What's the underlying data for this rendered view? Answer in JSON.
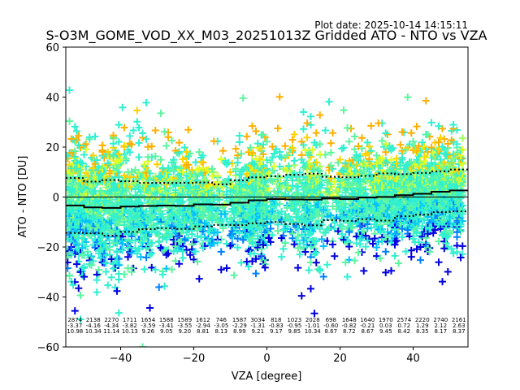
{
  "chart_data": {
    "type": "scatter",
    "title": "S-O3M_GOME_VOD_XX_M03_20251013Z Gridded ATO - NTO vs VZA",
    "plot_date_label": "Plot date: 2025-10-14 14:15:11",
    "xlabel": "VZA [degree]",
    "ylabel": "ATO - NTO [DU]",
    "xlim": [
      -55,
      55
    ],
    "ylim": [
      -60,
      60
    ],
    "xticks": [
      -40,
      -20,
      0,
      20,
      40
    ],
    "xtick_labels": [
      "−40",
      "−20",
      "0",
      "20",
      "40"
    ],
    "yticks": [
      60,
      40,
      20,
      0,
      -20,
      -40,
      -60
    ],
    "ytick_labels": [
      "60",
      "40",
      "20",
      "0",
      "−20",
      "−40",
      "−60"
    ],
    "grid": false,
    "zero_line": 0,
    "bin_width": 5,
    "bins": {
      "centers": [
        -52.5,
        -47.5,
        -42.5,
        -37.5,
        -32.5,
        -27.5,
        -22.5,
        -17.5,
        -12.5,
        -7.5,
        -2.5,
        2.5,
        7.5,
        12.5,
        17.5,
        22.5,
        27.5,
        32.5,
        37.5,
        42.5,
        47.5,
        52.5
      ],
      "counts": [
        2874,
        2138,
        2270,
        1711,
        1654,
        1588,
        1589,
        1612,
        746,
        1587,
        3034,
        818,
        1023,
        2028,
        698,
        1648,
        1640,
        1970,
        2574,
        2220,
        2740,
        2161
      ],
      "means": [
        -3.37,
        -4.16,
        -4.34,
        -3.82,
        -3.59,
        -3.41,
        -3.55,
        -2.94,
        -3.05,
        -2.29,
        -1.31,
        -0.83,
        -0.95,
        -1.01,
        -0.6,
        -0.82,
        -0.21,
        0.03,
        0.72,
        1.29,
        2.12,
        2.63
      ],
      "stds": [
        10.98,
        10.34,
        11.14,
        10.13,
        9.26,
        9.05,
        9.2,
        8.81,
        8.13,
        8.99,
        9.21,
        9.17,
        9.85,
        10.34,
        8.67,
        8.72,
        8.67,
        9.45,
        8.42,
        8.35,
        8.17,
        8.37
      ],
      "count_labels": [
        "2874",
        "2138",
        "2270",
        "1711",
        "1654",
        "1588",
        "1589",
        "1612",
        "746",
        "1587",
        "3034",
        "818",
        "1023",
        "2028",
        "698",
        "1648",
        "1640",
        "1970",
        "2574",
        "2220",
        "2740",
        "2161"
      ],
      "mean_labels": [
        "-3.37",
        "-4.16",
        "-4.34",
        "-3.82",
        "-3.59",
        "-3.41",
        "-3.55",
        "-2.94",
        "-3.05",
        "-2.29",
        "-1.31",
        "-0.83",
        "-0.95",
        "-1.01",
        "-0.60",
        "-0.82",
        "-0.21",
        "0.03",
        "0.72",
        "1.29",
        "2.12",
        "2.63"
      ],
      "std_labels": [
        "10.98",
        "10.34",
        "11.14",
        "10.13",
        "9.26",
        "9.05",
        "9.20",
        "8.81",
        "8.13",
        "8.99",
        "9.21",
        "9.17",
        "9.85",
        "10.34",
        "8.67",
        "8.72",
        "8.67",
        "9.45",
        "8.42",
        "8.35",
        "8.17",
        "8.37"
      ]
    },
    "series": [
      {
        "name": "gridded points (+ markers, colored by value)",
        "marker": "+"
      },
      {
        "name": "bin mean",
        "style": "solid-step",
        "color": "#000000"
      },
      {
        "name": "bin mean ± std",
        "style": "dotted-step",
        "color": "#000000"
      }
    ],
    "colormap": [
      "#0000e0",
      "#0080ff",
      "#00c0ff",
      "#30f0d0",
      "#5ef5a0",
      "#a0ff60",
      "#e0ff20",
      "#ffd200",
      "#ffb000"
    ],
    "scatter_x_range": [
      -54.5,
      53.5
    ]
  }
}
